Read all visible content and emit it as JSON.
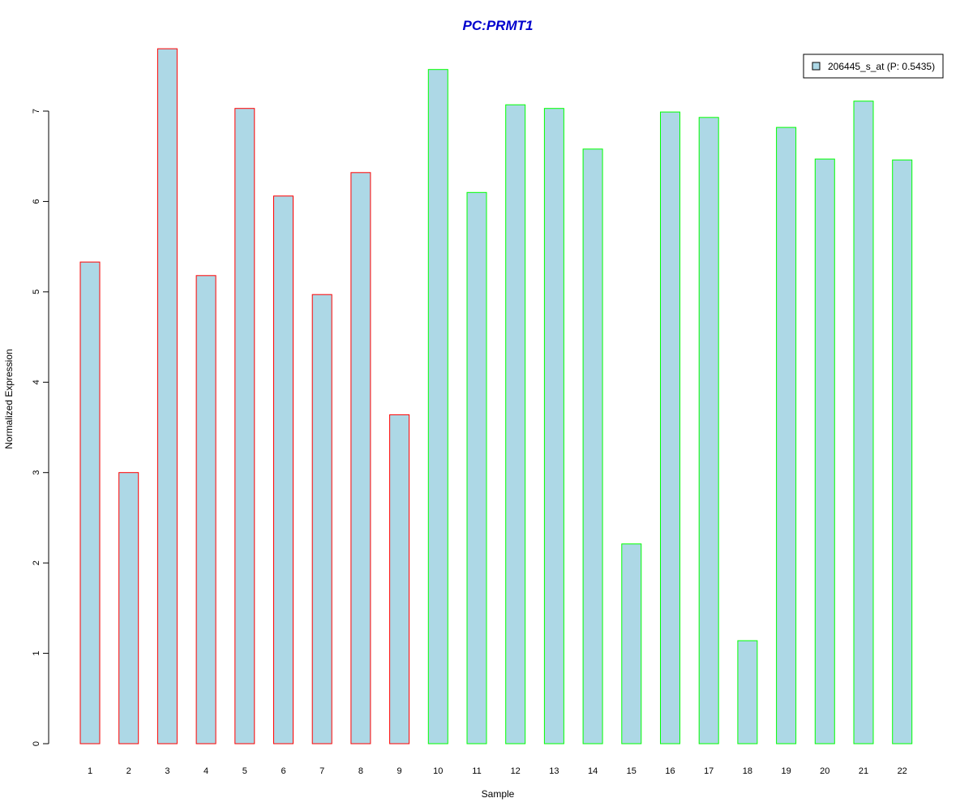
{
  "chart_data": {
    "type": "bar",
    "title": "PC:PRMT1",
    "xlabel": "Sample",
    "ylabel": "Normalized Expression",
    "categories": [
      "1",
      "2",
      "3",
      "4",
      "5",
      "6",
      "7",
      "8",
      "9",
      "10",
      "11",
      "12",
      "13",
      "14",
      "15",
      "16",
      "17",
      "18",
      "19",
      "20",
      "21",
      "22"
    ],
    "series": [
      {
        "name": "206445_s_at (P: 0.5435)",
        "values": [
          5.33,
          3.0,
          7.69,
          5.18,
          7.03,
          6.06,
          4.97,
          6.32,
          3.64,
          7.46,
          6.1,
          7.07,
          7.03,
          6.58,
          2.21,
          6.99,
          6.93,
          1.14,
          6.82,
          6.47,
          7.11,
          6.46
        ]
      }
    ],
    "bar_outline_colors": [
      "#ff0000",
      "#ff0000",
      "#ff0000",
      "#ff0000",
      "#ff0000",
      "#ff0000",
      "#ff0000",
      "#ff0000",
      "#ff0000",
      "#00ff00",
      "#00ff00",
      "#00ff00",
      "#00ff00",
      "#00ff00",
      "#00ff00",
      "#00ff00",
      "#00ff00",
      "#00ff00",
      "#00ff00",
      "#00ff00",
      "#00ff00",
      "#00ff00"
    ],
    "yticks": [
      0,
      1,
      2,
      3,
      4,
      5,
      6,
      7
    ],
    "ylim": [
      0,
      7.7
    ],
    "grid": false,
    "legend_position": "top-right",
    "colors": {
      "bar_fill": "#add8e6",
      "title": "#0000cd",
      "axis": "#000000"
    }
  }
}
